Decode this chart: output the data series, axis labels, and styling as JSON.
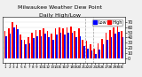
{
  "title": "Milwaukee Weather Dew Point",
  "subtitle": "Daily High/Low",
  "legend_high": "High",
  "legend_low": "Low",
  "high_color": "#ff0000",
  "low_color": "#0000ff",
  "background_color": "#f0f0f0",
  "plot_bg_color": "#ffffff",
  "ylim": [
    -10,
    80
  ],
  "yticks": [
    0,
    10,
    20,
    30,
    40,
    50,
    60,
    70
  ],
  "days": [
    1,
    2,
    3,
    4,
    5,
    6,
    7,
    8,
    9,
    10,
    11,
    12,
    13,
    14,
    15,
    16,
    17,
    18,
    19,
    20,
    21,
    22,
    23,
    24,
    25,
    26,
    27,
    28,
    29,
    30,
    31
  ],
  "high": [
    52,
    58,
    70,
    65,
    46,
    36,
    40,
    50,
    54,
    54,
    58,
    53,
    48,
    58,
    60,
    57,
    59,
    61,
    53,
    57,
    36,
    33,
    27,
    19,
    29,
    38,
    49,
    54,
    59,
    63,
    53
  ],
  "low": [
    43,
    48,
    59,
    56,
    36,
    26,
    29,
    39,
    43,
    43,
    48,
    40,
    36,
    46,
    50,
    46,
    49,
    50,
    41,
    43,
    23,
    18,
    14,
    7,
    17,
    26,
    36,
    40,
    48,
    51,
    41
  ],
  "dashed_vlines_x": [
    20.5,
    22.5
  ],
  "bar_width": 0.38,
  "fontsize_title": 4.5,
  "fontsize_axis": 3.5,
  "fontsize_legend": 3.5
}
